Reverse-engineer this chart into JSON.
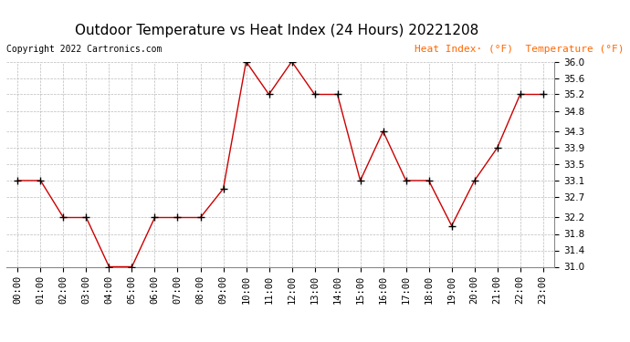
{
  "title": "Outdoor Temperature vs Heat Index (24 Hours) 20221208",
  "copyright_text": "Copyright 2022 Cartronics.com",
  "legend_heat_index": "Heat Index· (°F)",
  "legend_temperature": "Temperature (°F)",
  "x_labels": [
    "00:00",
    "01:00",
    "02:00",
    "03:00",
    "04:00",
    "05:00",
    "06:00",
    "07:00",
    "08:00",
    "09:00",
    "10:00",
    "11:00",
    "12:00",
    "13:00",
    "14:00",
    "15:00",
    "16:00",
    "17:00",
    "18:00",
    "19:00",
    "20:00",
    "21:00",
    "22:00",
    "23:00"
  ],
  "temperature": [
    33.1,
    33.1,
    32.2,
    32.2,
    31.0,
    31.0,
    32.2,
    32.2,
    32.2,
    32.9,
    36.0,
    35.2,
    36.0,
    35.2,
    35.2,
    33.1,
    34.3,
    33.1,
    33.1,
    32.0,
    33.1,
    33.9,
    35.2,
    35.2
  ],
  "heat_index": [
    33.1,
    33.1,
    32.2,
    32.2,
    31.0,
    31.0,
    32.2,
    32.2,
    32.2,
    32.9,
    36.0,
    35.2,
    36.0,
    35.2,
    35.2,
    33.1,
    34.3,
    33.1,
    33.1,
    32.0,
    33.1,
    33.9,
    35.2,
    35.2
  ],
  "line_color": "#cc0000",
  "marker_color": "#000000",
  "background_color": "#ffffff",
  "grid_color": "#aaaaaa",
  "title_color": "#000000",
  "copyright_color": "#000000",
  "legend_color": "#ff6600",
  "ylim": [
    31.0,
    36.0
  ],
  "yticks": [
    31.0,
    31.4,
    31.8,
    32.2,
    32.7,
    33.1,
    33.5,
    33.9,
    34.3,
    34.8,
    35.2,
    35.6,
    36.0
  ],
  "title_fontsize": 11,
  "tick_fontsize": 7.5,
  "legend_fontsize": 8,
  "copyright_fontsize": 7
}
